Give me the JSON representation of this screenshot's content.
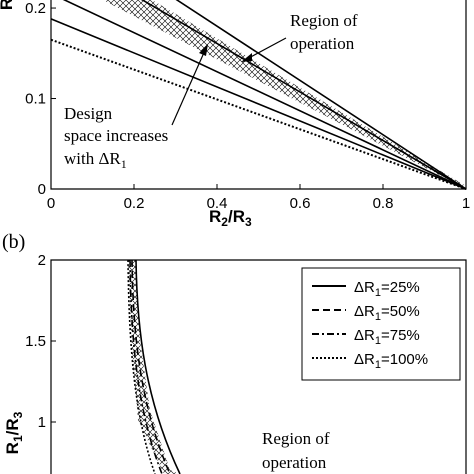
{
  "chart_data": [
    {
      "type": "line",
      "panel": "a",
      "xlabel": "R2/R3",
      "ylabel": "R",
      "xlim": [
        0,
        1
      ],
      "ylim": [
        0,
        0.24
      ],
      "x_ticks": [
        "0",
        "0.2",
        "0.4",
        "0.6",
        "0.8",
        "1"
      ],
      "y_ticks": [
        "0",
        "0.1",
        "0.2"
      ],
      "series": [
        {
          "values": [
            [
              0,
              0.165
            ],
            [
              1,
              0
            ]
          ],
          "style": "dotted"
        },
        {
          "values": [
            [
              0,
              0.188
            ],
            [
              1,
              0
            ]
          ],
          "style": "solid"
        },
        {
          "values": [
            [
              0,
              0.216
            ],
            [
              1,
              0
            ]
          ],
          "style": "solid"
        },
        {
          "values": [
            [
              0,
              0.268
            ],
            [
              1,
              0
            ]
          ],
          "style": "solid"
        },
        {
          "values": [
            [
              0,
              0.3
            ],
            [
              1,
              0
            ]
          ],
          "style": "solid"
        }
      ],
      "hatched_region": "between the two upper lines",
      "annotations": {
        "region_line1": "Region of",
        "region_line2": "operation",
        "design_line1": "Design",
        "design_line2": "space increases",
        "design_line3_prefix": "with ΔR",
        "design_line3_sub": "1"
      }
    },
    {
      "type": "line",
      "panel": "b",
      "panel_label": "(b)",
      "ylabel_main": "R",
      "ylabel_sub1": "1",
      "ylabel_mid": "/R",
      "ylabel_sub2": "3",
      "y_ticks": [
        "1",
        "1.5",
        "2"
      ],
      "ylim": [
        0.9,
        2
      ],
      "legend_position": "top-right",
      "legend": [
        {
          "prefix": "ΔR",
          "sub": "1",
          "suffix": "=25%",
          "style": "solid"
        },
        {
          "prefix": "ΔR",
          "sub": "1",
          "suffix": "=50%",
          "style": "dashed"
        },
        {
          "prefix": "ΔR",
          "sub": "1",
          "suffix": "=75%",
          "style": "dashdot"
        },
        {
          "prefix": "ΔR",
          "sub": "1",
          "suffix": "=100%",
          "style": "dotted"
        }
      ],
      "annotations": {
        "region_line1": "Region of",
        "region_line2": "operation"
      }
    }
  ],
  "colors": {
    "ink": "#000000",
    "background": "#ffffff"
  }
}
